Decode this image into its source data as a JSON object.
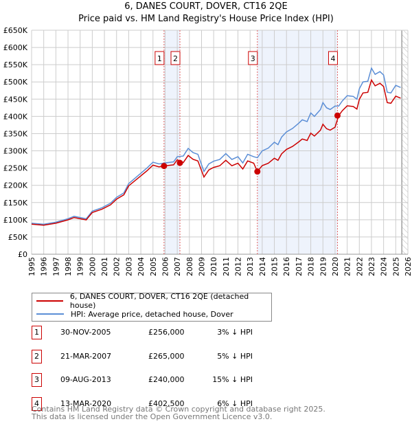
{
  "chart_data": {
    "type": "line",
    "title": "6, DANES COURT, DOVER, CT16 2QE",
    "subtitle": "Price paid vs. HM Land Registry's House Price Index (HPI)",
    "xlim": [
      1995,
      2026
    ],
    "ylim": [
      0,
      650000
    ],
    "y_ticks": [
      {
        "v": 0,
        "l": "£0"
      },
      {
        "v": 50000,
        "l": "£50K"
      },
      {
        "v": 100000,
        "l": "£100K"
      },
      {
        "v": 150000,
        "l": "£150K"
      },
      {
        "v": 200000,
        "l": "£200K"
      },
      {
        "v": 250000,
        "l": "£250K"
      },
      {
        "v": 300000,
        "l": "£300K"
      },
      {
        "v": 350000,
        "l": "£350K"
      },
      {
        "v": 400000,
        "l": "£400K"
      },
      {
        "v": 450000,
        "l": "£450K"
      },
      {
        "v": 500000,
        "l": "£500K"
      },
      {
        "v": 550000,
        "l": "£550K"
      },
      {
        "v": 600000,
        "l": "£600K"
      },
      {
        "v": 650000,
        "l": "£650K"
      }
    ],
    "x_ticks": [
      "1995",
      "1996",
      "1997",
      "1998",
      "1999",
      "2000",
      "2001",
      "2002",
      "2003",
      "2004",
      "2005",
      "2006",
      "2007",
      "2008",
      "2009",
      "2010",
      "2011",
      "2012",
      "2013",
      "2014",
      "2015",
      "2016",
      "2017",
      "2018",
      "2019",
      "2020",
      "2021",
      "2022",
      "2023",
      "2024",
      "2025",
      "2026"
    ],
    "grid": true,
    "hatched_after": 2025.5,
    "series": [
      {
        "name": "6, DANES COURT, DOVER, CT16 2QE (detached house)",
        "color": "#cc0000",
        "derived_from": "HPI indexed from each sale"
      },
      {
        "name": "HPI: Average price, detached house, Dover",
        "color": "#5b8ed6",
        "x": [
          1995,
          1996,
          1997,
          1998,
          1998.5,
          1999.5,
          2000,
          2000.8,
          2001.5,
          2002,
          2002.6,
          2003,
          2003.5,
          2004,
          2004.5,
          2005,
          2005.5,
          2006,
          2006.7,
          2007,
          2007.5,
          2007.9,
          2008.3,
          2008.7,
          2009,
          2009.2,
          2009.6,
          2010,
          2010.5,
          2011,
          2011.5,
          2012,
          2012.4,
          2012.8,
          2013.3,
          2013.6,
          2014,
          2014.5,
          2015,
          2015.3,
          2015.6,
          2016,
          2016.5,
          2017,
          2017.3,
          2017.7,
          2018,
          2018.3,
          2018.8,
          2019,
          2019.3,
          2019.6,
          2020,
          2020.3,
          2020.6,
          2021,
          2021.5,
          2021.8,
          2022,
          2022.3,
          2022.7,
          2023,
          2023.3,
          2023.7,
          2024,
          2024.3,
          2024.6,
          2025,
          2025.4
        ],
        "values": [
          90000,
          87000,
          93000,
          103000,
          110000,
          103000,
          125000,
          135000,
          148000,
          165000,
          178000,
          205000,
          220000,
          235000,
          250000,
          267000,
          262000,
          265000,
          268000,
          283000,
          285000,
          307000,
          295000,
          290000,
          260000,
          240000,
          262000,
          270000,
          275000,
          292000,
          275000,
          283000,
          265000,
          290000,
          283000,
          280000,
          300000,
          308000,
          325000,
          318000,
          340000,
          355000,
          365000,
          380000,
          390000,
          385000,
          410000,
          400000,
          420000,
          440000,
          425000,
          420000,
          430000,
          430000,
          445000,
          460000,
          458000,
          450000,
          480000,
          500000,
          502000,
          540000,
          522000,
          530000,
          520000,
          470000,
          468000,
          490000,
          484000
        ]
      }
    ],
    "sales": [
      {
        "n": "1",
        "x": 2005.91,
        "date": "30-NOV-2005",
        "price": 256000,
        "price_label": "£256,000",
        "hpi": "3% ↓ HPI"
      },
      {
        "n": "2",
        "x": 2007.22,
        "date": "21-MAR-2007",
        "price": 265000,
        "price_label": "£265,000",
        "hpi": "5% ↓ HPI"
      },
      {
        "n": "3",
        "x": 2013.6,
        "date": "09-AUG-2013",
        "price": 240000,
        "price_label": "£240,000",
        "hpi": "15% ↓ HPI"
      },
      {
        "n": "4",
        "x": 2020.2,
        "date": "13-MAR-2020",
        "price": 402500,
        "price_label": "£402,500",
        "hpi": "6% ↓ HPI"
      }
    ]
  },
  "legend": {
    "red": "6, DANES COURT, DOVER, CT16 2QE (detached house)",
    "blue": "HPI: Average price, detached house, Dover"
  },
  "footer": {
    "line1": "Contains HM Land Registry data © Crown copyright and database right 2025.",
    "line2": "This data is licensed under the Open Government Licence v3.0."
  }
}
